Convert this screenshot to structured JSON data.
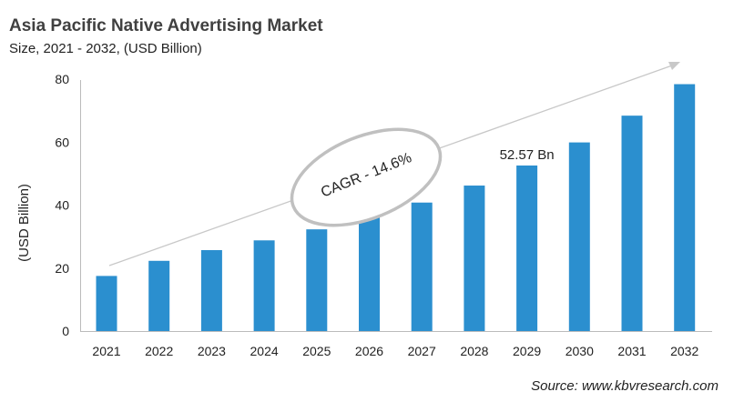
{
  "chart_data": {
    "type": "bar",
    "title": "Asia Pacific Native Advertising Market",
    "subtitle": "Size, 2021 - 2032, (USD Billion)",
    "xlabel": "",
    "ylabel": "(USD Billion)",
    "categories": [
      "2021",
      "2022",
      "2023",
      "2024",
      "2025",
      "2026",
      "2027",
      "2028",
      "2029",
      "2030",
      "2031",
      "2032"
    ],
    "values": [
      17.5,
      22.3,
      25.7,
      28.8,
      32.3,
      36.2,
      40.8,
      46.2,
      52.57,
      59.9,
      68.4,
      78.4
    ],
    "ylim": [
      0,
      80
    ],
    "yticks": [
      0,
      20,
      40,
      60,
      80
    ],
    "grid": false,
    "bar_color": "#2b8fcf",
    "annotations": {
      "data_label": "52.57 Bn",
      "cagr": "CAGR - 14.6%"
    },
    "source": "Source: www.kbvresearch.com"
  }
}
